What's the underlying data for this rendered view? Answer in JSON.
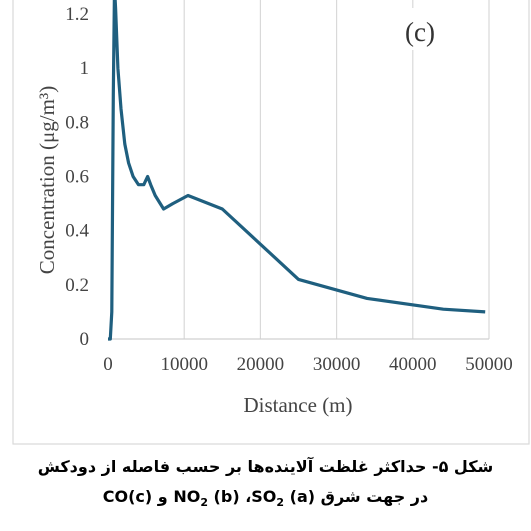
{
  "chart_data": {
    "type": "line",
    "panel_label": "(c)",
    "xlabel": "Distance (m)",
    "ylabel": "Concentration (μg/m³)",
    "xlim": [
      0,
      50000
    ],
    "ylim": [
      0,
      1.3
    ],
    "x_ticks": [
      0,
      10000,
      20000,
      30000,
      40000,
      50000
    ],
    "y_ticks": [
      0,
      0.2,
      0.4,
      0.6,
      0.8,
      1,
      1.2
    ],
    "grid": "vertical",
    "series": [
      {
        "color": "#1f5f7f",
        "points": [
          [
            0,
            0
          ],
          [
            300,
            0
          ],
          [
            500,
            0.1
          ],
          [
            700,
            0.9
          ],
          [
            850,
            1.3
          ],
          [
            1000,
            1.22
          ],
          [
            1300,
            1.0
          ],
          [
            1700,
            0.85
          ],
          [
            2200,
            0.72
          ],
          [
            2700,
            0.65
          ],
          [
            3300,
            0.6
          ],
          [
            4000,
            0.57
          ],
          [
            4700,
            0.57
          ],
          [
            5200,
            0.6
          ],
          [
            5600,
            0.57
          ],
          [
            6200,
            0.53
          ],
          [
            7300,
            0.48
          ],
          [
            8500,
            0.5
          ],
          [
            10500,
            0.53
          ],
          [
            15000,
            0.48
          ],
          [
            25000,
            0.22
          ],
          [
            34000,
            0.15
          ],
          [
            44000,
            0.11
          ],
          [
            49500,
            0.1
          ]
        ]
      }
    ]
  },
  "caption": {
    "line1": "شکل ۵- حداکثر غلظت آلاینده‌ها بر حسب فاصله از دودکش",
    "line2_prefix": "در جهت شرق",
    "so2": "SO",
    "so2_sub": "2",
    "so2_tag": "(a)",
    "sep": "،",
    "no2": "NO",
    "no2_sub": "2",
    "no2_tag": "(b)",
    "and": "و",
    "co": "CO",
    "co_tag": "(c)"
  }
}
